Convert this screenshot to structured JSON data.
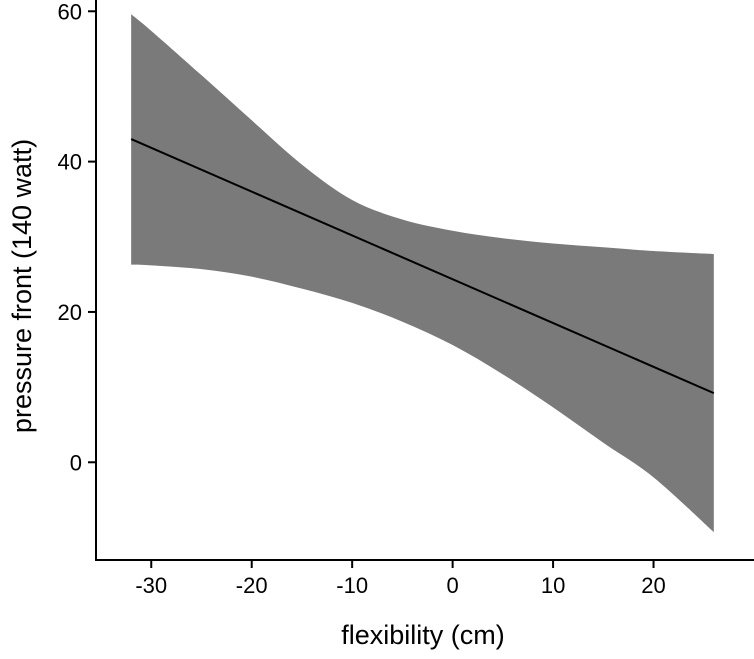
{
  "chart_data": {
    "type": "line",
    "title": "",
    "xlabel": "flexibility (cm)",
    "ylabel": "pressure front (140 watt)",
    "xlim": [
      -35.5,
      30
    ],
    "ylim": [
      -13,
      61.5
    ],
    "grid": false,
    "legend": "none",
    "x_ticks": [
      -30,
      -20,
      -10,
      0,
      10,
      20
    ],
    "x_tick_labels": [
      "-30",
      "-20",
      "-10",
      "0",
      "10",
      "20"
    ],
    "y_ticks": [
      0,
      20,
      40,
      60
    ],
    "y_tick_labels": [
      "0",
      "20",
      "40",
      "60"
    ],
    "colors": {
      "band": "#7a7a7a",
      "line": "#000000",
      "axis": "#000000"
    },
    "series": [
      {
        "name": "fitted regression line",
        "x": [
          -32,
          26
        ],
        "y": [
          43,
          9.2
        ]
      }
    ],
    "confidence_band": {
      "name": "confidence interval",
      "x": [
        -32,
        -30,
        -25,
        -20,
        -15,
        -10,
        -5,
        0,
        5,
        10,
        15,
        20,
        26
      ],
      "upper": [
        59.6,
        57.4,
        51.5,
        45.5,
        39.6,
        34.9,
        32.3,
        30.8,
        29.8,
        29.1,
        28.6,
        28.1,
        27.7
      ],
      "lower": [
        26.3,
        26.2,
        25.7,
        24.7,
        23.1,
        21.2,
        18.7,
        15.6,
        11.7,
        7.3,
        2.6,
        -2.0,
        -9.3
      ]
    }
  }
}
